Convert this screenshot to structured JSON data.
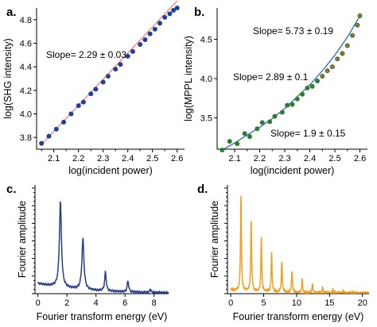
{
  "chart_data": [
    {
      "panel": "a.",
      "type": "scatter",
      "xlabel": "log(incident power)",
      "ylabel": "log(SHG intensity)",
      "xlim": [
        2.03,
        2.63
      ],
      "ylim": [
        3.7,
        4.9
      ],
      "xticks": [
        "2.1",
        "2.2",
        "2.3",
        "2.4",
        "2.5",
        "2.6"
      ],
      "yticks": [
        "3.8",
        "4.0",
        "4.2",
        "4.4",
        "4.6",
        "4.8"
      ],
      "colors": {
        "points": "#1f3fa0",
        "fit": "#f08080"
      },
      "annotations": [
        {
          "text": "Slope= 2.29 ± 0.03",
          "x": 2.11,
          "y": 4.61
        }
      ],
      "fit": {
        "x": [
          2.05,
          2.6
        ],
        "y": [
          3.74,
          4.96
        ]
      },
      "x": [
        2.05,
        2.08,
        2.11,
        2.14,
        2.17,
        2.2,
        2.22,
        2.25,
        2.27,
        2.3,
        2.32,
        2.35,
        2.37,
        2.4,
        2.42,
        2.45,
        2.47,
        2.49,
        2.51,
        2.53,
        2.55,
        2.57,
        2.585,
        2.6
      ],
      "y": [
        3.75,
        3.81,
        3.87,
        3.93,
        4.0,
        4.07,
        4.1,
        4.17,
        4.21,
        4.27,
        4.32,
        4.38,
        4.42,
        4.49,
        4.53,
        4.59,
        4.63,
        4.68,
        4.72,
        4.77,
        4.82,
        4.85,
        4.88,
        4.9
      ]
    },
    {
      "panel": "b.",
      "type": "scatter",
      "xlabel": "log(incident power)",
      "ylabel": "log(MPPL intensity)",
      "xlim": [
        2.03,
        2.63
      ],
      "ylim": [
        3.1,
        4.9
      ],
      "xticks": [
        "2.1",
        "2.2",
        "2.3",
        "2.4",
        "2.5",
        "2.6"
      ],
      "yticks": [
        "3.5",
        "4.0",
        "4.5"
      ],
      "colors": {
        "points": "#2e7d32",
        "fit": "#2f6fb0",
        "fit2": "#e65c2e"
      },
      "annotations": [
        {
          "text": "Slope= 5.73 ± 0.19",
          "x": 2.29,
          "y": 4.6
        },
        {
          "text": "Slope= 2.89 ± 0.1",
          "x": 2.18,
          "y": 4.0
        },
        {
          "text": "Slope= 1.9 ± 0.15",
          "x": 2.35,
          "y": 3.3
        }
      ],
      "fit": {
        "x": [
          2.05,
          2.1,
          2.15,
          2.2,
          2.25,
          2.3,
          2.35,
          2.4,
          2.45,
          2.5,
          2.55,
          2.6
        ],
        "y": [
          3.09,
          3.18,
          3.28,
          3.38,
          3.49,
          3.62,
          3.77,
          3.92,
          4.1,
          4.3,
          4.53,
          4.8
        ]
      },
      "x": [
        2.05,
        2.08,
        2.11,
        2.14,
        2.16,
        2.19,
        2.21,
        2.24,
        2.26,
        2.29,
        2.31,
        2.33,
        2.35,
        2.37,
        2.39,
        2.41,
        2.43,
        2.45,
        2.47,
        2.49,
        2.51,
        2.53,
        2.55,
        2.57,
        2.59,
        2.6
      ],
      "y": [
        3.09,
        3.2,
        3.17,
        3.3,
        3.26,
        3.36,
        3.44,
        3.45,
        3.52,
        3.57,
        3.66,
        3.67,
        3.74,
        3.8,
        3.88,
        3.9,
        3.97,
        4.03,
        4.1,
        4.15,
        4.25,
        4.32,
        4.42,
        4.55,
        4.68,
        4.8
      ]
    },
    {
      "panel": "c.",
      "type": "line",
      "xlabel": "Fourier transform energy (eV)",
      "ylabel": "Fourier amplitude",
      "xlim": [
        -0.2,
        9.0
      ],
      "ylim": [
        0,
        1.0
      ],
      "xticks": [
        "0",
        "2",
        "4",
        "6",
        "8"
      ],
      "colors": {
        "line": "#2b3a8c"
      },
      "peaks": [
        {
          "x": 1.55,
          "amp": 0.78,
          "width": 0.17
        },
        {
          "x": 3.1,
          "amp": 0.46,
          "width": 0.17
        },
        {
          "x": 4.65,
          "amp": 0.17,
          "width": 0.13
        },
        {
          "x": 6.2,
          "amp": 0.1,
          "width": 0.12
        },
        {
          "x": 7.75,
          "amp": 0.03,
          "width": 0.1
        }
      ],
      "baseline": 0.09
    },
    {
      "panel": "d.",
      "type": "line",
      "xlabel": "Fourier transform energy (eV)",
      "ylabel": "Fourier amplitude",
      "xlim": [
        -0.5,
        21.0
      ],
      "ylim": [
        0,
        1.0
      ],
      "xticks": [
        "0",
        "5",
        "10",
        "15",
        "20"
      ],
      "colors": {
        "line": "#f0a020"
      },
      "peaks": [
        {
          "x": 1.55,
          "amp": 0.88,
          "width": 0.16
        },
        {
          "x": 3.1,
          "amp": 0.65,
          "width": 0.16
        },
        {
          "x": 4.65,
          "amp": 0.49,
          "width": 0.16
        },
        {
          "x": 6.2,
          "amp": 0.37,
          "width": 0.16
        },
        {
          "x": 7.75,
          "amp": 0.28,
          "width": 0.16
        },
        {
          "x": 9.3,
          "amp": 0.2,
          "width": 0.16
        },
        {
          "x": 10.85,
          "amp": 0.13,
          "width": 0.15
        },
        {
          "x": 12.4,
          "amp": 0.08,
          "width": 0.15
        },
        {
          "x": 13.95,
          "amp": 0.05,
          "width": 0.15
        },
        {
          "x": 15.5,
          "amp": 0.035,
          "width": 0.14
        },
        {
          "x": 17.05,
          "amp": 0.02,
          "width": 0.14
        },
        {
          "x": 18.6,
          "amp": 0.015,
          "width": 0.14
        }
      ],
      "baseline": 0.03
    }
  ]
}
